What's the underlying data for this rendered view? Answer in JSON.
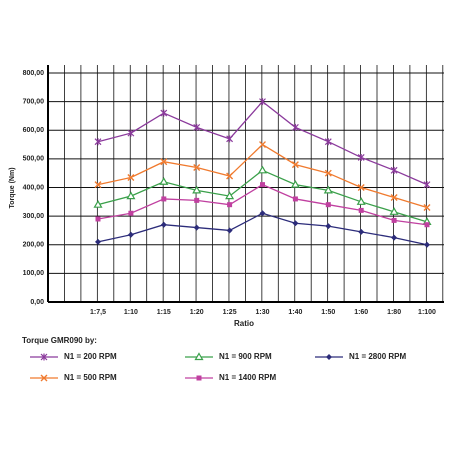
{
  "chart_data": {
    "type": "line",
    "y_label": "Torque (Nm)",
    "x_label": "Ratio",
    "legend_title": "Torque GMR090 by:",
    "categories": [
      "1:7,5",
      "1:10",
      "1:15",
      "1:20",
      "1:25",
      "1:30",
      "1:40",
      "1:50",
      "1:60",
      "1:80",
      "1:100"
    ],
    "ylim": [
      0,
      800
    ],
    "yticks": [
      {
        "value": 0,
        "label": "0,00"
      },
      {
        "value": 100,
        "label": "100,00"
      },
      {
        "value": 200,
        "label": "200,00"
      },
      {
        "value": 300,
        "label": "300,00"
      },
      {
        "value": 400,
        "label": "400,00"
      },
      {
        "value": 500,
        "label": "500,00"
      },
      {
        "value": 600,
        "label": "600,00"
      },
      {
        "value": 700,
        "label": "700,00"
      },
      {
        "value": 800,
        "label": "800,00"
      }
    ],
    "grid": true,
    "series": [
      {
        "name": "N1 = 200 RPM",
        "color": "#8b3a9c",
        "marker": "asterisk",
        "values": [
          560,
          590,
          660,
          610,
          570,
          700,
          610,
          560,
          505,
          460,
          410
        ]
      },
      {
        "name": "N1 = 500 RPM",
        "color": "#f07a2e",
        "marker": "x",
        "values": [
          410,
          435,
          490,
          470,
          440,
          550,
          480,
          450,
          400,
          365,
          330
        ]
      },
      {
        "name": "N1 = 900 RPM",
        "color": "#3aa04a",
        "marker": "triangle",
        "values": [
          340,
          370,
          420,
          390,
          370,
          460,
          410,
          390,
          350,
          315,
          280
        ]
      },
      {
        "name": "N1 = 1400 RPM",
        "color": "#c040a0",
        "marker": "square",
        "values": [
          290,
          310,
          360,
          355,
          340,
          410,
          360,
          340,
          320,
          285,
          270
        ]
      },
      {
        "name": "N1 = 2800 RPM",
        "color": "#2c2c7a",
        "marker": "diamond",
        "values": [
          210,
          235,
          270,
          260,
          250,
          310,
          275,
          265,
          245,
          225,
          200
        ]
      }
    ]
  }
}
